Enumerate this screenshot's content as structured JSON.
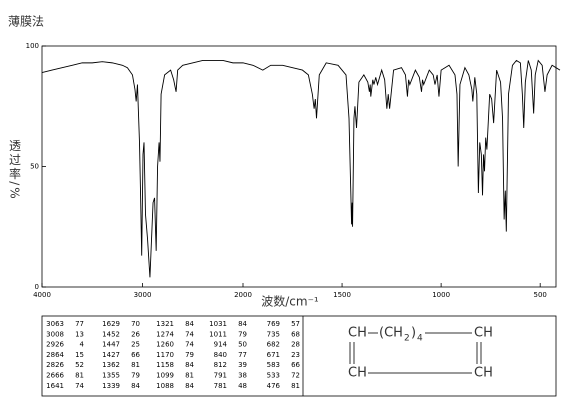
{
  "chart_data": {
    "type": "line",
    "title": "薄膜法",
    "x_label": "波数/cm⁻¹",
    "y_label": "透过率/%",
    "xlim": [
      4000,
      400
    ],
    "x_scale_change_at": 2000,
    "xticks": [
      4000,
      3000,
      2000,
      1500,
      1000,
      500
    ],
    "ylim": [
      0,
      100
    ],
    "yticks": [
      0,
      50,
      100
    ],
    "color": "#000000",
    "x": [
      4000,
      3900,
      3800,
      3700,
      3600,
      3500,
      3400,
      3300,
      3200,
      3150,
      3100,
      3075,
      3063,
      3050,
      3030,
      3020,
      3008,
      2995,
      2985,
      2970,
      2950,
      2926,
      2910,
      2895,
      2880,
      2864,
      2850,
      2835,
      2826,
      2815,
      2780,
      2720,
      2690,
      2666,
      2650,
      2600,
      2400,
      2200,
      2100,
      2000,
      1950,
      1900,
      1860,
      1800,
      1750,
      1700,
      1670,
      1650,
      1641,
      1635,
      1629,
      1615,
      1580,
      1520,
      1480,
      1465,
      1452,
      1449,
      1447,
      1440,
      1435,
      1427,
      1415,
      1390,
      1370,
      1362,
      1358,
      1355,
      1345,
      1339,
      1330,
      1321,
      1300,
      1285,
      1274,
      1267,
      1260,
      1240,
      1200,
      1180,
      1170,
      1164,
      1158,
      1130,
      1110,
      1099,
      1094,
      1088,
      1060,
      1040,
      1031,
      1020,
      1011,
      1000,
      960,
      930,
      920,
      914,
      905,
      880,
      860,
      845,
      840,
      830,
      820,
      812,
      805,
      797,
      791,
      786,
      781,
      775,
      769,
      755,
      745,
      735,
      720,
      700,
      690,
      682,
      676,
      671,
      660,
      640,
      620,
      600,
      590,
      583,
      575,
      560,
      545,
      533,
      525,
      510,
      490,
      476,
      465,
      440,
      420,
      400
    ],
    "values": [
      89,
      90,
      91,
      92,
      93,
      93,
      93.5,
      93,
      92,
      91,
      88,
      82,
      77,
      84,
      60,
      40,
      13,
      55,
      60,
      30,
      20,
      4,
      20,
      35,
      37,
      15,
      50,
      60,
      52,
      80,
      88,
      90,
      86,
      81,
      90,
      92,
      94,
      94,
      93,
      93,
      92,
      90,
      92,
      92,
      91,
      90,
      88,
      80,
      74,
      78,
      70,
      88,
      93,
      92,
      88,
      70,
      26,
      35,
      25,
      70,
      75,
      66,
      85,
      88,
      85,
      81,
      84,
      79,
      86,
      84,
      87,
      84,
      90,
      86,
      74,
      80,
      74,
      90,
      91,
      88,
      79,
      86,
      84,
      90,
      87,
      81,
      86,
      84,
      90,
      88,
      84,
      88,
      79,
      90,
      92,
      88,
      80,
      50,
      84,
      91,
      88,
      82,
      77,
      87,
      80,
      39,
      60,
      55,
      38,
      55,
      48,
      62,
      57,
      80,
      78,
      68,
      90,
      85,
      70,
      28,
      40,
      23,
      80,
      92,
      94,
      93,
      80,
      66,
      85,
      94,
      90,
      72,
      88,
      94,
      92,
      81,
      88,
      92,
      91,
      90
    ]
  },
  "peak_table": {
    "columns": [
      [
        [
          3063,
          77
        ],
        [
          3008,
          13
        ],
        [
          2926,
          4
        ],
        [
          2864,
          15
        ],
        [
          2826,
          52
        ],
        [
          2666,
          81
        ],
        [
          1641,
          74
        ]
      ],
      [
        [
          1629,
          70
        ],
        [
          1452,
          26
        ],
        [
          1447,
          25
        ],
        [
          1427,
          66
        ],
        [
          1362,
          81
        ],
        [
          1355,
          79
        ],
        [
          1339,
          84
        ]
      ],
      [
        [
          1321,
          84
        ],
        [
          1274,
          74
        ],
        [
          1260,
          74
        ],
        [
          1170,
          79
        ],
        [
          1158,
          84
        ],
        [
          1099,
          81
        ],
        [
          1088,
          84
        ]
      ],
      [
        [
          1031,
          84
        ],
        [
          1011,
          79
        ],
        [
          914,
          50
        ],
        [
          840,
          77
        ],
        [
          812,
          39
        ],
        [
          791,
          38
        ],
        [
          781,
          48
        ]
      ],
      [
        [
          769,
          57
        ],
        [
          735,
          68
        ],
        [
          682,
          28
        ],
        [
          671,
          23
        ],
        [
          583,
          66
        ],
        [
          533,
          72
        ],
        [
          476,
          81
        ]
      ]
    ]
  },
  "structure": {
    "labels": [
      "CH",
      "(CH",
      "2",
      ")",
      "4",
      "CH",
      "CH",
      "CH"
    ]
  }
}
